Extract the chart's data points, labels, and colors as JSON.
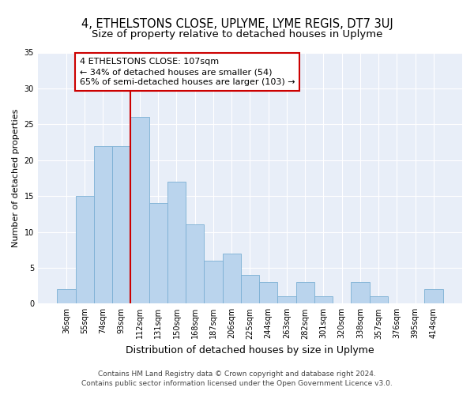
{
  "title": "4, ETHELSTONS CLOSE, UPLYME, LYME REGIS, DT7 3UJ",
  "subtitle": "Size of property relative to detached houses in Uplyme",
  "xlabel": "Distribution of detached houses by size in Uplyme",
  "ylabel": "Number of detached properties",
  "categories": [
    "36sqm",
    "55sqm",
    "74sqm",
    "93sqm",
    "112sqm",
    "131sqm",
    "150sqm",
    "168sqm",
    "187sqm",
    "206sqm",
    "225sqm",
    "244sqm",
    "263sqm",
    "282sqm",
    "301sqm",
    "320sqm",
    "338sqm",
    "357sqm",
    "376sqm",
    "395sqm",
    "414sqm"
  ],
  "values": [
    2,
    15,
    22,
    22,
    26,
    14,
    17,
    11,
    6,
    7,
    4,
    3,
    1,
    3,
    1,
    0,
    3,
    1,
    0,
    0,
    2
  ],
  "bar_color": "#bad4ed",
  "bar_edgecolor": "#7bafd4",
  "bg_color": "#e8eef8",
  "grid_color": "#ffffff",
  "annotation_text": "4 ETHELSTONS CLOSE: 107sqm\n← 34% of detached houses are smaller (54)\n65% of semi-detached houses are larger (103) →",
  "annotation_box_color": "#ffffff",
  "annotation_box_edgecolor": "#cc0000",
  "vline_color": "#cc0000",
  "ylim": [
    0,
    35
  ],
  "yticks": [
    0,
    5,
    10,
    15,
    20,
    25,
    30,
    35
  ],
  "footer": "Contains HM Land Registry data © Crown copyright and database right 2024.\nContains public sector information licensed under the Open Government Licence v3.0.",
  "title_fontsize": 10.5,
  "subtitle_fontsize": 9.5,
  "xlabel_fontsize": 9,
  "ylabel_fontsize": 8,
  "tick_fontsize": 7,
  "annotation_fontsize": 8,
  "footer_fontsize": 6.5
}
